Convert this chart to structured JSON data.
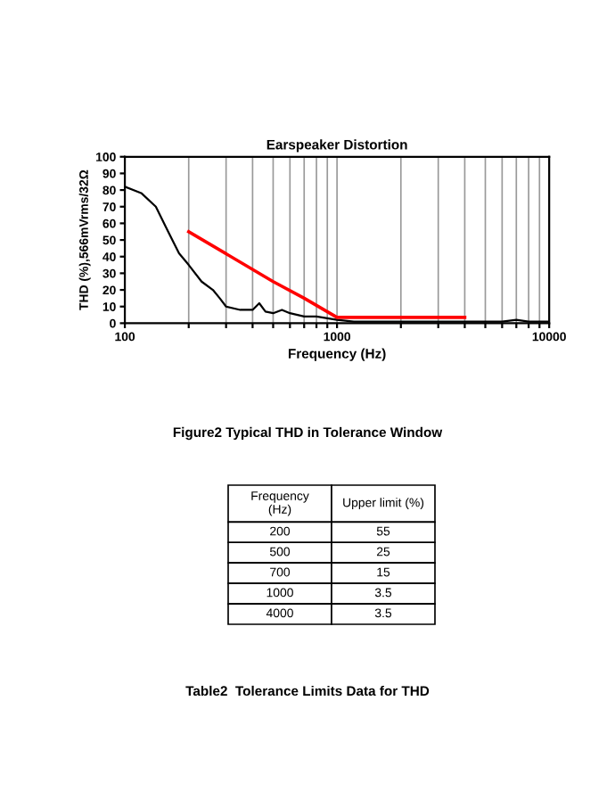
{
  "chart_data": [
    {
      "type": "line",
      "title": "Earspeaker Distortion",
      "xlabel": "Frequency (Hz)",
      "ylabel": "THD (%),566mVrms/32Ω",
      "log": "x",
      "xlim": [
        100,
        10000
      ],
      "xticks": [
        100,
        {
          "value": 200,
          "label": null
        },
        {
          "value": 300,
          "label": null
        },
        {
          "value": 400,
          "label": null
        },
        {
          "value": 500,
          "label": null
        },
        {
          "value": 600,
          "label": null
        },
        {
          "value": 700,
          "label": null
        },
        {
          "value": 800,
          "label": null
        },
        {
          "value": 900,
          "label": null
        },
        1000,
        {
          "value": 2000,
          "label": null
        },
        {
          "value": 3000,
          "label": null
        },
        {
          "value": 4000,
          "label": null
        },
        {
          "value": 5000,
          "label": null
        },
        {
          "value": 6000,
          "label": null
        },
        {
          "value": 7000,
          "label": null
        },
        {
          "value": 8000,
          "label": null
        },
        {
          "value": 9000,
          "label": null
        },
        10000
      ],
      "ylim": [
        0,
        100
      ],
      "yticks": [
        0,
        10,
        20,
        30,
        40,
        50,
        60,
        70,
        80,
        90,
        100
      ],
      "grid": "x",
      "legend": false,
      "series": [
        {
          "color": "#000000",
          "x": [
            100,
            120,
            140,
            160,
            180,
            200,
            230,
            260,
            280,
            300,
            350,
            400,
            430,
            460,
            500,
            550,
            600,
            700,
            800,
            900,
            1000,
            1200,
            2000,
            4000,
            6000,
            7000,
            8000,
            10000
          ],
          "values": [
            82,
            78,
            70,
            55,
            42,
            35,
            25,
            20,
            15,
            10,
            8,
            8,
            12,
            7,
            6,
            8,
            6,
            4,
            4,
            3,
            2,
            1,
            1,
            1,
            1,
            2,
            1,
            1
          ]
        },
        {
          "color": "#ff0000",
          "x": [
            200,
            500,
            700,
            1000,
            4000
          ],
          "values": [
            55,
            25,
            15,
            3.5,
            3.5
          ]
        }
      ],
      "annotations": [
        "Figure2 Typical THD in Tolerance Window"
      ]
    },
    {
      "type": "other",
      "categories": [
        "Frequency (Hz)",
        "Upper limit (%)"
      ],
      "annotations": [
        "200",
        "55",
        "500",
        "25",
        "700",
        "15",
        "1000",
        "3.5",
        "4000",
        "3.5",
        "Table2  Tolerance Limits Data for THD"
      ]
    }
  ]
}
